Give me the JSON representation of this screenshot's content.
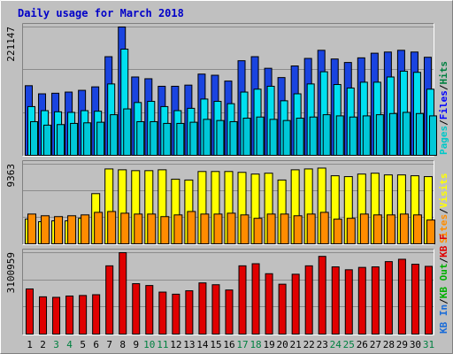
{
  "title": "Daily usage for March 2018",
  "colors": {
    "background": "#c0c0c0",
    "panel": "#c0c0c0",
    "title": "#0000c8",
    "axis_text": "#000000",
    "weekend_text": "#008040",
    "grid": "#8c8c8c",
    "hits": "#1a44e0",
    "files": "#00e0f0",
    "pages": "#00c8d8",
    "visits": "#ffff00",
    "sites": "#ff8c00",
    "kbf": "#e00000",
    "kbout": "#00b000",
    "kbin": "#1a6cd8"
  },
  "chart_data": [
    {
      "type": "bar",
      "name": "hits-files-pages",
      "categories": [
        "1",
        "2",
        "3",
        "4",
        "5",
        "6",
        "7",
        "8",
        "9",
        "10",
        "11",
        "12",
        "13",
        "14",
        "15",
        "16",
        "17",
        "18",
        "19",
        "20",
        "21",
        "22",
        "23",
        "24",
        "25",
        "26",
        "27",
        "28",
        "29",
        "30",
        "31"
      ],
      "weekend_days": [
        "3",
        "4",
        "10",
        "11",
        "17",
        "18",
        "24",
        "25",
        "31"
      ],
      "ymax_label": "221147",
      "ylim": [
        0,
        221147
      ],
      "legend": [
        {
          "label": "Hits",
          "color": "#008040"
        },
        {
          "label": "/",
          "color": "#000000"
        },
        {
          "label": "Files",
          "color": "#0000ff"
        },
        {
          "label": "/",
          "color": "#000000"
        },
        {
          "label": "Pages",
          "color": "#00c8c8"
        }
      ],
      "series": [
        {
          "name": "Hits",
          "color": "#1a44e0",
          "values": [
            120000,
            106000,
            107000,
            109000,
            112000,
            118000,
            170000,
            221147,
            135000,
            132000,
            119000,
            119000,
            121000,
            140000,
            138000,
            128000,
            163000,
            170000,
            150000,
            134000,
            154000,
            167000,
            181000,
            166000,
            160000,
            168000,
            176000,
            178000,
            181000,
            178000,
            169000
          ]
        },
        {
          "name": "Files",
          "color": "#00e0f0",
          "values": [
            84000,
            77000,
            75000,
            74000,
            77000,
            76000,
            123000,
            183000,
            91000,
            93000,
            84000,
            77000,
            81000,
            97000,
            93000,
            89000,
            109000,
            114000,
            119000,
            94000,
            106000,
            123000,
            144000,
            122000,
            116000,
            126000,
            126000,
            135000,
            145000,
            143000,
            114000
          ]
        },
        {
          "name": "Pages",
          "color": "#00c8d8",
          "values": [
            58000,
            52000,
            53000,
            55000,
            56000,
            57000,
            70000,
            80000,
            58000,
            58000,
            55000,
            55000,
            57000,
            62000,
            60000,
            58000,
            64000,
            66000,
            62000,
            60000,
            64000,
            66000,
            70000,
            68000,
            66000,
            68000,
            70000,
            72000,
            74000,
            72000,
            68000
          ]
        }
      ]
    },
    {
      "type": "bar",
      "name": "visits-sites",
      "categories": [
        "1",
        "2",
        "3",
        "4",
        "5",
        "6",
        "7",
        "8",
        "9",
        "10",
        "11",
        "12",
        "13",
        "14",
        "15",
        "16",
        "17",
        "18",
        "19",
        "20",
        "21",
        "22",
        "23",
        "24",
        "25",
        "26",
        "27",
        "28",
        "29",
        "30",
        "31"
      ],
      "ymax_label": "9363",
      "ylim": [
        0,
        9363
      ],
      "legend": [
        {
          "label": "Visits",
          "color": "#ffff00"
        },
        {
          "label": "/",
          "color": "#000000"
        },
        {
          "label": "Sites",
          "color": "#ff8c00"
        }
      ],
      "series": [
        {
          "name": "Visits",
          "color": "#ffff00",
          "values": [
            2900,
            2600,
            2700,
            2700,
            3000,
            5900,
            8800,
            8700,
            8600,
            8600,
            8700,
            7600,
            7500,
            8500,
            8500,
            8500,
            8400,
            8200,
            8300,
            7500,
            8700,
            8800,
            8900,
            8000,
            7900,
            8200,
            8300,
            8100,
            8100,
            8000,
            7900
          ]
        },
        {
          "name": "Sites",
          "color": "#ff8c00",
          "values": [
            3500,
            3300,
            3200,
            3300,
            3400,
            3700,
            3800,
            3600,
            3500,
            3500,
            3200,
            3400,
            3800,
            3500,
            3500,
            3600,
            3400,
            3000,
            3500,
            3500,
            3300,
            3500,
            3700,
            2900,
            3000,
            3500,
            3400,
            3400,
            3500,
            3400,
            2800
          ]
        }
      ]
    },
    {
      "type": "bar",
      "name": "kbytes",
      "categories": [
        "1",
        "2",
        "3",
        "4",
        "5",
        "6",
        "7",
        "8",
        "9",
        "10",
        "11",
        "12",
        "13",
        "14",
        "15",
        "16",
        "17",
        "18",
        "19",
        "20",
        "21",
        "22",
        "23",
        "24",
        "25",
        "26",
        "27",
        "28",
        "29",
        "30",
        "31"
      ],
      "ymax_label": "3100959",
      "ylim": [
        0,
        3100959
      ],
      "legend": [
        {
          "label": "KB F",
          "color": "#e00000"
        },
        {
          "label": "/",
          "color": "#000000"
        },
        {
          "label": "KB Out",
          "color": "#00b000"
        },
        {
          "label": "/",
          "color": "#000000"
        },
        {
          "label": "KB In",
          "color": "#1a6cd8"
        }
      ],
      "series": [
        {
          "name": "KB F",
          "color": "#e00000",
          "values": [
            1720000,
            1420000,
            1400000,
            1450000,
            1470000,
            1500000,
            2600000,
            3100959,
            1920000,
            1850000,
            1600000,
            1520000,
            1650000,
            1950000,
            1880000,
            1680000,
            2600000,
            2680000,
            2300000,
            1900000,
            2280000,
            2600000,
            2960000,
            2560000,
            2450000,
            2540000,
            2560000,
            2760000,
            2850000,
            2660000,
            2580000
          ]
        }
      ]
    }
  ]
}
